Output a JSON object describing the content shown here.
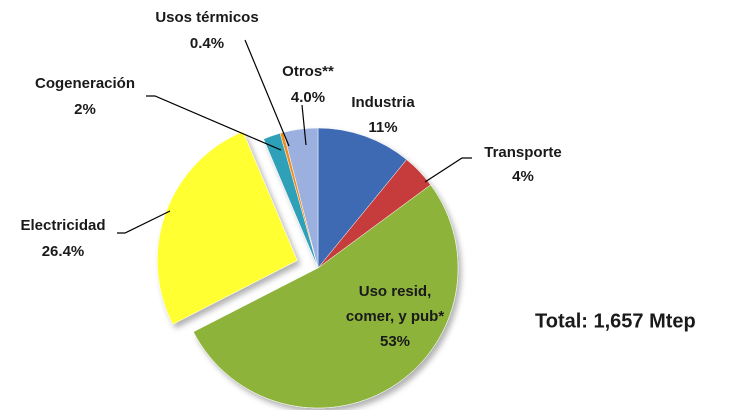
{
  "chart_data": {
    "type": "pie",
    "categories": [
      "Industria",
      "Transporte",
      "Uso resid, comer, y pub*",
      "Electricidad",
      "Cogeneración",
      "Usos térmicos",
      "Otros**"
    ],
    "values": [
      11,
      4,
      53,
      26.4,
      2,
      0.4,
      4.0
    ],
    "value_labels": [
      "11%",
      "4%",
      "53%",
      "26.4%",
      "2%",
      "0.4%",
      "4.0%"
    ],
    "colors": [
      "#3d6bb3",
      "#c63b3b",
      "#8db33a",
      "#ffff33",
      "#2fa0b8",
      "#f08c1e",
      "#9cb0e0"
    ],
    "exploded": [
      "Electricidad"
    ],
    "annotation": "Total: 1,657 Mtep"
  }
}
